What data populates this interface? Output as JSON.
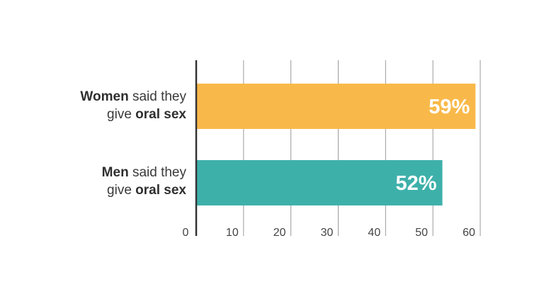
{
  "chart_data": {
    "type": "bar",
    "orientation": "horizontal",
    "categories": [
      {
        "bold1": "Women",
        "text1": " said they",
        "text2": "give ",
        "bold2": "oral sex"
      },
      {
        "bold1": "Men",
        "text1": " said they",
        "text2": "give ",
        "bold2": "oral sex"
      }
    ],
    "values": [
      59,
      52
    ],
    "data_labels": [
      "59%",
      "52%"
    ],
    "colors": [
      "#f9b94a",
      "#3eb0aa"
    ],
    "xlim": [
      0,
      60
    ],
    "xticks": [
      "0",
      "10",
      "20",
      "30",
      "40",
      "50",
      "60"
    ],
    "grid": true
  }
}
